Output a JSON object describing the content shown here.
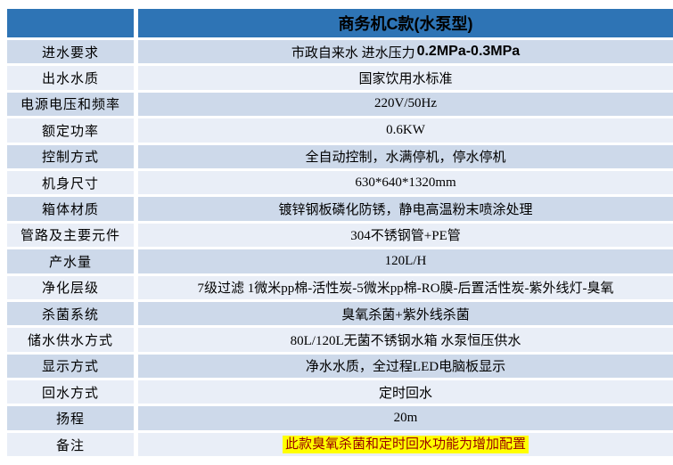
{
  "header": {
    "corner_label": "",
    "product_title": "商务机C款(水泵型)"
  },
  "colors": {
    "accent-blue": "#2e74b5",
    "band-dark": "#cdd9ea",
    "band-light": "#e9eef7",
    "highlight-bg": "#ffff00",
    "highlight-text": "#990000"
  },
  "table": {
    "rows": [
      {
        "label": "进水要求",
        "value_cn": "市政自来水 进水压力",
        "value_en": "0.2MPa-0.3MPa"
      },
      {
        "label": "出水水质",
        "value": "国家饮用水标准"
      },
      {
        "label": "电源电压和频率",
        "value": "220V/50Hz"
      },
      {
        "label": "额定功率",
        "value": "0.6KW"
      },
      {
        "label": "控制方式",
        "value": "全自动控制，水满停机，停水停机"
      },
      {
        "label": "机身尺寸",
        "value": "630*640*1320mm"
      },
      {
        "label": "箱体材质",
        "value": "镀锌钢板磷化防锈，静电高温粉末喷涂处理"
      },
      {
        "label": "管路及主要元件",
        "value": "304不锈钢管+PE管"
      },
      {
        "label": "产水量",
        "value": "120L/H"
      },
      {
        "label": "净化层级",
        "value": "7级过滤 1微米pp棉-活性炭-5微米pp棉-RO膜-后置活性炭-紫外线灯-臭氧"
      },
      {
        "label": "杀菌系统",
        "value": "臭氧杀菌+紫外线杀菌"
      },
      {
        "label": "储水供水方式",
        "value": "80L/120L无菌不锈钢水箱 水泵恒压供水"
      },
      {
        "label": "显示方式",
        "value": "净水水质，全过程LED电脑板显示"
      },
      {
        "label": "回水方式",
        "value": "定时回水"
      },
      {
        "label": "扬程",
        "value": "20m"
      },
      {
        "label": "备注",
        "value": "此款臭氧杀菌和定时回水功能为增加配置"
      }
    ]
  }
}
